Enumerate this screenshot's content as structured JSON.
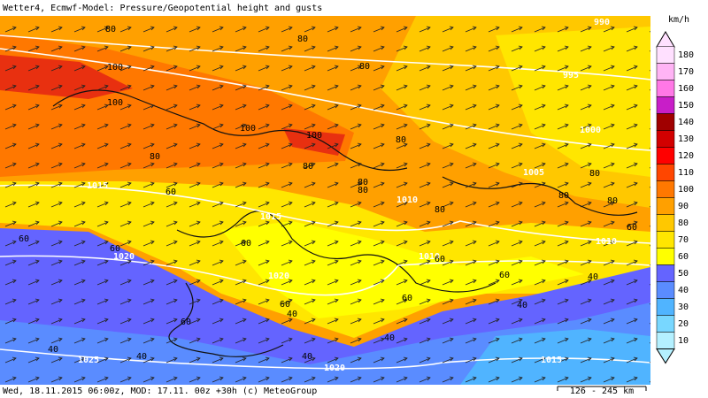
{
  "header": {
    "title": "Wetter4, Ecmwf-Model: Pressure/Geopotential height and gusts"
  },
  "footer": {
    "left": "Wed, 18.11.2015 06:00z, MOD: 17.11. 00z +30h (c) MeteoGroup",
    "scale": "126 - 245 km"
  },
  "legend": {
    "unit": "km/h",
    "items": [
      {
        "value": 180,
        "color": "#ffe0ff"
      },
      {
        "value": 170,
        "color": "#ffb4f5"
      },
      {
        "value": 160,
        "color": "#ff78e6"
      },
      {
        "value": 150,
        "color": "#c81ec8"
      },
      {
        "value": 140,
        "color": "#a00000"
      },
      {
        "value": 130,
        "color": "#d20000"
      },
      {
        "value": 120,
        "color": "#ff0000"
      },
      {
        "value": 110,
        "color": "#ff4600"
      },
      {
        "value": 100,
        "color": "#ff7800"
      },
      {
        "value": 90,
        "color": "#ffa000"
      },
      {
        "value": 80,
        "color": "#ffc800"
      },
      {
        "value": 70,
        "color": "#ffe600"
      },
      {
        "value": 60,
        "color": "#ffff00"
      },
      {
        "value": 50,
        "color": "#6464ff"
      },
      {
        "value": 40,
        "color": "#5a8cff"
      },
      {
        "value": 30,
        "color": "#50b4ff"
      },
      {
        "value": 20,
        "color": "#78d7ff"
      },
      {
        "value": 10,
        "color": "#b4f0ff"
      }
    ]
  },
  "map": {
    "isobar_labels": [
      "990",
      "995",
      "1000",
      "1005",
      "1015",
      "1010",
      "1015",
      "1020",
      "1010",
      "1010",
      "1020",
      "1025",
      "1020",
      "1015"
    ],
    "gust_labels": [
      "80",
      "80",
      "80",
      "100",
      "100",
      "100",
      "100",
      "80",
      "80",
      "80",
      "80",
      "80",
      "80",
      "60",
      "80",
      "80",
      "80",
      "60",
      "60",
      "60",
      "60",
      "60",
      "60",
      "40",
      "60",
      "40",
      "60",
      "40",
      "60",
      "40",
      "40",
      "40",
      "40"
    ]
  }
}
